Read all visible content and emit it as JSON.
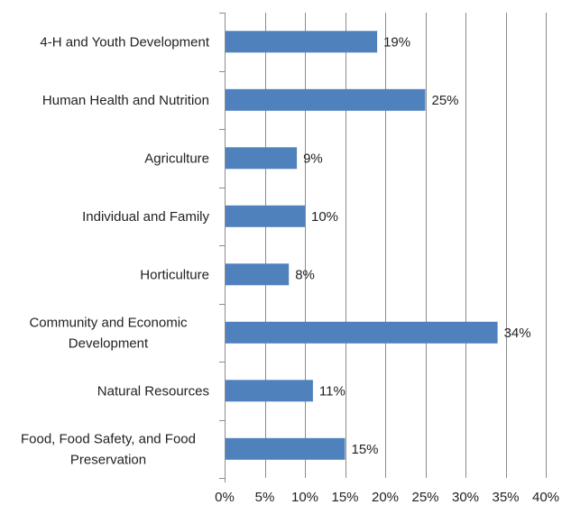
{
  "chart_data": {
    "type": "bar",
    "orientation": "horizontal",
    "title": "",
    "xlabel": "",
    "ylabel": "",
    "xlim": [
      0,
      40
    ],
    "x_ticks": [
      0,
      5,
      10,
      15,
      20,
      25,
      30,
      35,
      40
    ],
    "x_tick_format": "percent",
    "grid": "vertical",
    "legend": "none",
    "bar_color": "#4F81BD",
    "categories": [
      [
        "4-H and Youth Development"
      ],
      [
        "Human Health and Nutrition"
      ],
      [
        "Agriculture"
      ],
      [
        "Individual and Family"
      ],
      [
        "Horticulture"
      ],
      [
        "Community and Economic",
        "Development"
      ],
      [
        "Natural Resources"
      ],
      [
        "Food, Food Safety, and Food",
        "Preservation"
      ]
    ],
    "values": [
      19,
      25,
      9,
      10,
      8,
      34,
      11,
      15
    ],
    "data_labels": [
      "19%",
      "25%",
      "9%",
      "10%",
      "8%",
      "34%",
      "11%",
      "15%"
    ]
  }
}
